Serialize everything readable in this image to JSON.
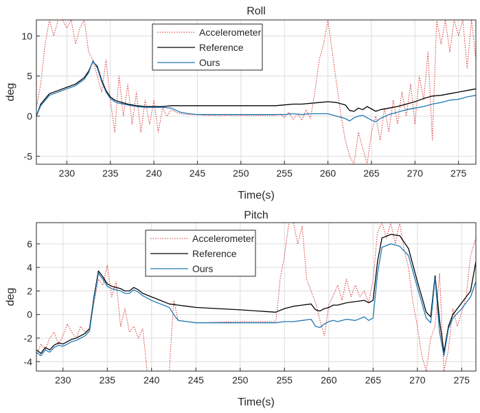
{
  "chart_data": [
    {
      "type": "line",
      "title": "Roll",
      "xlabel": "Time(s)",
      "ylabel": "deg",
      "xlim": [
        226.5,
        277
      ],
      "ylim": [
        -6,
        12
      ],
      "xticks": [
        "230",
        "235",
        "240",
        "245",
        "250",
        "255",
        "260",
        "265",
        "270",
        "275"
      ],
      "yticks": [
        "-5",
        "0",
        "5",
        "10"
      ],
      "grid": true,
      "legend_position": "top-center",
      "series": [
        {
          "name": "Accelerometer",
          "color": "#d62728",
          "style": "dotted",
          "x": [
            226.5,
            227,
            227.5,
            228,
            228.5,
            229,
            229.5,
            230,
            230.5,
            231,
            231.5,
            232,
            232.5,
            233,
            233.5,
            234,
            234.5,
            235,
            235.5,
            236,
            236.5,
            237,
            237.5,
            238,
            238.5,
            239,
            239.5,
            240,
            240.5,
            241,
            241.5,
            242,
            242.5,
            243,
            244,
            245,
            246,
            248,
            250,
            252,
            254,
            254.5,
            255,
            255.5,
            256,
            256.5,
            257,
            257.5,
            258,
            258.5,
            259,
            259.5,
            260,
            260.5,
            261,
            261.5,
            262,
            262.5,
            263,
            263.5,
            264,
            264.5,
            265,
            265.5,
            266,
            266.5,
            267,
            267.5,
            268,
            268.5,
            269,
            269.5,
            270,
            270.5,
            271,
            271.5,
            272,
            272.5,
            273,
            273.5,
            274,
            274.5,
            275,
            275.5,
            276,
            276.5,
            277
          ],
          "y": [
            1,
            4,
            9,
            12,
            10,
            12,
            12,
            11,
            12,
            9,
            11,
            12,
            8,
            7,
            5,
            3,
            7,
            2,
            -2,
            5,
            0,
            4,
            -1,
            3,
            -2,
            2,
            -1,
            2,
            -2,
            1,
            0,
            0.8,
            0.5,
            0.3,
            0.2,
            0.2,
            0.1,
            0.1,
            0.1,
            0.1,
            0.1,
            0.3,
            -0.2,
            0.5,
            -0.4,
            0.3,
            -0.5,
            0.8,
            -0.3,
            3,
            7,
            9,
            12,
            8,
            4,
            0,
            -3,
            -5,
            -6,
            -2,
            -4,
            -6,
            -2,
            0,
            -3,
            1,
            -2,
            2,
            -1,
            3,
            0,
            4,
            -1,
            5,
            2,
            8,
            -3,
            12,
            9,
            12,
            8,
            12,
            10,
            12,
            6,
            12,
            7
          ]
        },
        {
          "name": "Reference",
          "color": "#000000",
          "style": "solid",
          "x": [
            226.5,
            227,
            228,
            229,
            230,
            231,
            232,
            232.5,
            233,
            233.5,
            234,
            234.5,
            235,
            235.5,
            236,
            237,
            238,
            239,
            240,
            241,
            242,
            245,
            250,
            254,
            255,
            256,
            257,
            258,
            259,
            260,
            261,
            262,
            262.5,
            263,
            263.5,
            264,
            264.5,
            265,
            265.5,
            266,
            267,
            268,
            269,
            270,
            271,
            272,
            273,
            274,
            275,
            276,
            277
          ],
          "y": [
            0,
            1.5,
            2.8,
            3.2,
            3.6,
            4,
            4.8,
            5.6,
            6.8,
            6.2,
            4.5,
            3.2,
            2.4,
            2,
            1.8,
            1.5,
            1.3,
            1.2,
            1.2,
            1.2,
            1.3,
            1.3,
            1.3,
            1.3,
            1.4,
            1.5,
            1.5,
            1.6,
            1.7,
            1.8,
            1.7,
            1.4,
            0.7,
            0.6,
            1,
            0.8,
            1.2,
            0.9,
            0.6,
            0.8,
            1,
            1.2,
            1.5,
            1.8,
            2.2,
            2.5,
            2.6,
            2.8,
            3,
            3.2,
            3.4
          ]
        },
        {
          "name": "Ours",
          "color": "#1f77b4",
          "style": "solid",
          "x": [
            226.5,
            227,
            228,
            229,
            230,
            231,
            232,
            232.5,
            233,
            233.5,
            234,
            234.5,
            235,
            235.5,
            236,
            237,
            238,
            239,
            240,
            241,
            242,
            243,
            244,
            245,
            250,
            254,
            255,
            256,
            257,
            258,
            259,
            260,
            261,
            262,
            262.5,
            263,
            263.5,
            264,
            264.5,
            265,
            265.5,
            266,
            267,
            268,
            269,
            270,
            271,
            272,
            273,
            274,
            275,
            276,
            277
          ],
          "y": [
            0,
            1.3,
            2.6,
            3,
            3.4,
            3.8,
            4.6,
            5.4,
            6.9,
            6,
            4.3,
            3,
            2.2,
            1.8,
            1.6,
            1.4,
            1.2,
            1.1,
            1.1,
            1.1,
            1,
            0.5,
            0.3,
            0.2,
            0.2,
            0.2,
            0.2,
            0.3,
            0.2,
            0.3,
            0.3,
            0.3,
            0,
            -0.3,
            -0.6,
            -0.2,
            0,
            0.1,
            -0.2,
            -0.5,
            -0.7,
            -0.3,
            0.2,
            0.5,
            0.8,
            1,
            1.2,
            1.5,
            1.7,
            2,
            2.1,
            2.4,
            2.6
          ]
        }
      ]
    },
    {
      "type": "line",
      "title": "Pitch",
      "xlabel": "Time(s)",
      "ylabel": "deg",
      "xlim": [
        227,
        276.6
      ],
      "ylim": [
        -4.8,
        7.8
      ],
      "xticks": [
        "230",
        "235",
        "240",
        "245",
        "250",
        "255",
        "260",
        "265",
        "270",
        "275"
      ],
      "yticks": [
        "-4",
        "-2",
        "0",
        "2",
        "4",
        "6"
      ],
      "grid": true,
      "legend_position": "top-center",
      "series": [
        {
          "name": "Accelerometer",
          "color": "#d62728",
          "style": "dotted",
          "x": [
            227,
            227.5,
            228,
            228.5,
            229,
            229.5,
            230,
            230.5,
            231,
            231.5,
            232,
            232.5,
            233,
            233.5,
            234,
            234.5,
            235,
            235.5,
            236,
            236.5,
            237,
            237.5,
            238,
            238.5,
            239,
            239.5,
            240,
            241,
            242,
            242.5,
            243,
            244,
            245,
            250,
            254,
            254.2,
            254.5,
            255,
            255.5,
            256,
            256.5,
            257,
            257.5,
            258,
            258.5,
            259,
            259.5,
            260,
            260.5,
            261,
            261.5,
            262,
            262.5,
            263,
            263.5,
            264,
            264.5,
            265,
            265.5,
            266,
            266.5,
            267,
            267.5,
            268,
            268.5,
            269,
            269.5,
            270,
            270.5,
            271,
            271.5,
            272,
            272.5,
            273,
            273.5,
            274,
            274.5,
            275,
            275.5,
            276,
            276.6
          ],
          "y": [
            -3.5,
            -2.5,
            -3,
            -2,
            -1.5,
            -2.5,
            -1.8,
            -0.8,
            -1.5,
            -2,
            -1,
            -1.5,
            -1.2,
            1,
            3,
            2.5,
            4.2,
            1.5,
            2.8,
            -1,
            0.5,
            -1.5,
            -1,
            -2,
            -1.2,
            -4.8,
            -4.8,
            -4.8,
            -4.8,
            1.2,
            -0.5,
            -0.6,
            -0.7,
            -0.6,
            -0.6,
            0.5,
            3,
            5,
            7.8,
            7.8,
            6,
            7.5,
            3,
            2,
            1,
            -0.5,
            -1.8,
            0.8,
            1.6,
            2.5,
            1.2,
            3,
            1.5,
            2.5,
            1.5,
            2,
            1,
            3,
            7,
            7.8,
            6.5,
            7.8,
            6,
            7.8,
            5.5,
            4,
            1,
            -1,
            -3.5,
            -4.8,
            -2,
            -1,
            3.5,
            -4.8,
            -3,
            0.5,
            -1,
            0.2,
            1.5,
            5,
            6.5
          ]
        },
        {
          "name": "Reference",
          "color": "#000000",
          "style": "solid",
          "x": [
            227,
            227.5,
            228,
            228.5,
            229,
            229.5,
            230,
            230.5,
            231,
            231.5,
            232,
            232.5,
            233,
            233.5,
            234,
            234.5,
            235,
            235.5,
            236,
            236.5,
            237,
            237.5,
            238,
            238.5,
            239,
            240,
            241,
            242,
            243,
            244,
            245,
            250,
            254,
            255,
            256,
            257,
            258,
            258.5,
            259,
            259.5,
            260,
            260.5,
            261,
            262,
            263,
            264,
            264.5,
            265,
            265.5,
            266,
            267,
            268,
            269,
            270,
            270.5,
            271,
            271.5,
            272,
            272.5,
            273,
            273.5,
            274,
            275,
            276,
            276.6
          ],
          "y": [
            -3,
            -3.3,
            -2.8,
            -3,
            -2.6,
            -2.4,
            -2.5,
            -2.3,
            -2.1,
            -2,
            -1.8,
            -1.6,
            -1.2,
            1.5,
            3.7,
            3.2,
            2.6,
            2.4,
            2.3,
            2.2,
            2,
            2,
            2.3,
            2.1,
            1.8,
            1.5,
            1.2,
            0.9,
            0.8,
            0.7,
            0.6,
            0.4,
            0.2,
            0.5,
            0.7,
            0.8,
            0.9,
            0.4,
            0.3,
            0.5,
            0.6,
            0.8,
            0.8,
            1,
            1.1,
            1.2,
            1,
            1.2,
            4.5,
            6.5,
            6.8,
            6.7,
            5.6,
            2.8,
            1.5,
            0.2,
            -0.2,
            3.3,
            -0.5,
            -3.2,
            -1,
            0,
            1,
            2,
            4.5
          ]
        },
        {
          "name": "Ours",
          "color": "#1f77b4",
          "style": "solid",
          "x": [
            227,
            227.5,
            228,
            228.5,
            229,
            229.5,
            230,
            230.5,
            231,
            231.5,
            232,
            232.5,
            233,
            233.5,
            234,
            234.5,
            235,
            235.5,
            236,
            236.5,
            237,
            237.5,
            238,
            238.5,
            239,
            240,
            241,
            242,
            242.5,
            243,
            244,
            245,
            250,
            254,
            255,
            256,
            257,
            258,
            258.5,
            259,
            259.5,
            260,
            260.5,
            261,
            262,
            263,
            264,
            264.5,
            265,
            265.5,
            266,
            267,
            268,
            269,
            270,
            270.5,
            271,
            271.5,
            272,
            272.5,
            273,
            273.5,
            274,
            275,
            276,
            276.6
          ],
          "y": [
            -3.2,
            -3.5,
            -3,
            -3.2,
            -2.8,
            -2.6,
            -2.7,
            -2.5,
            -2.3,
            -2.2,
            -2,
            -1.8,
            -1.4,
            1.3,
            3.5,
            3,
            2.4,
            2.2,
            2.1,
            2,
            1.8,
            1.8,
            2.1,
            1.9,
            1.6,
            1.2,
            0.9,
            0.6,
            0,
            -0.5,
            -0.6,
            -0.7,
            -0.7,
            -0.7,
            -0.6,
            -0.6,
            -0.5,
            -0.4,
            -1,
            -1.1,
            -0.8,
            -0.6,
            -0.5,
            -0.6,
            -0.4,
            -0.5,
            -0.2,
            -0.5,
            -0.3,
            3.5,
            5.7,
            6,
            5.8,
            5,
            2.3,
            1,
            -0.3,
            -0.7,
            3.1,
            -1.5,
            -3.5,
            -1.2,
            -0.3,
            0.5,
            1.5,
            2.8
          ]
        }
      ]
    }
  ]
}
